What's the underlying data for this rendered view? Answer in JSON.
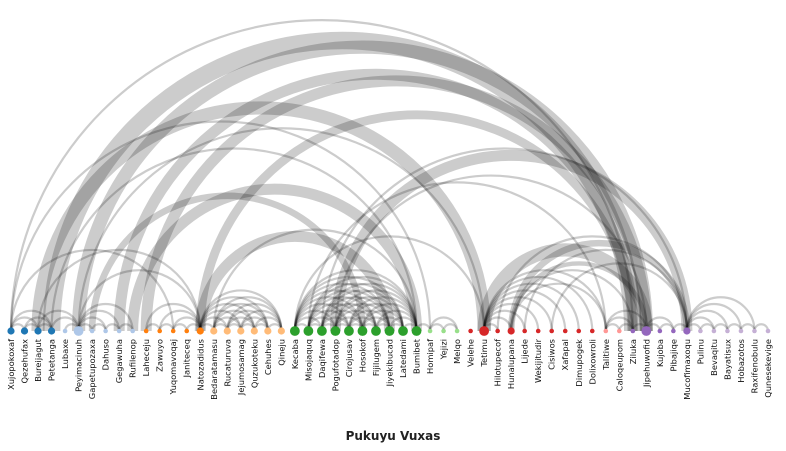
{
  "title": "Pukuyu Vuxas",
  "nodes": [
    {
      "label": "Xujopokoxaf",
      "group": 0,
      "size": 2
    },
    {
      "label": "Qezehufax",
      "group": 0,
      "size": 2
    },
    {
      "label": "Bureijagut",
      "group": 0,
      "size": 2
    },
    {
      "label": "Petetanga",
      "group": 0,
      "size": 2
    },
    {
      "label": "Lubaxe",
      "group": 1,
      "size": 1
    },
    {
      "label": "Peyimacinuh",
      "group": 1,
      "size": 3
    },
    {
      "label": "Gapetupozaxa",
      "group": 1,
      "size": 1
    },
    {
      "label": "Dahuso",
      "group": 1,
      "size": 1
    },
    {
      "label": "Gegawuha",
      "group": 1,
      "size": 1
    },
    {
      "label": "Rufilenop",
      "group": 1,
      "size": 1
    },
    {
      "label": "Laheceju",
      "group": 2,
      "size": 1
    },
    {
      "label": "Zawuyo",
      "group": 2,
      "size": 1
    },
    {
      "label": "Yuqomavoqaj",
      "group": 2,
      "size": 1
    },
    {
      "label": "Janiteceq",
      "group": 2,
      "size": 1
    },
    {
      "label": "Natozadidus",
      "group": 2,
      "size": 2
    },
    {
      "label": "Bedaratamasu",
      "group": 3,
      "size": 2
    },
    {
      "label": "Rucaturuva",
      "group": 3,
      "size": 2
    },
    {
      "label": "Jejumosamag",
      "group": 3,
      "size": 2
    },
    {
      "label": "Quzukoteku",
      "group": 3,
      "size": 2
    },
    {
      "label": "Cehuhes",
      "group": 3,
      "size": 2
    },
    {
      "label": "Qineju",
      "group": 3,
      "size": 2
    },
    {
      "label": "Kecaba",
      "group": 4,
      "size": 3
    },
    {
      "label": "Misojaquq",
      "group": 4,
      "size": 3
    },
    {
      "label": "Daqifewa",
      "group": 4,
      "size": 3
    },
    {
      "label": "Pogufotadop",
      "group": 4,
      "size": 3
    },
    {
      "label": "Cirojusav",
      "group": 4,
      "size": 3
    },
    {
      "label": "Hosokof",
      "group": 4,
      "size": 3
    },
    {
      "label": "Fijilugem",
      "group": 4,
      "size": 3
    },
    {
      "label": "Jiyekibucad",
      "group": 4,
      "size": 3
    },
    {
      "label": "Latedami",
      "group": 4,
      "size": 3
    },
    {
      "label": "Bumibet",
      "group": 4,
      "size": 3
    },
    {
      "label": "Homipaf",
      "group": 5,
      "size": 1
    },
    {
      "label": "Yejizi",
      "group": 5,
      "size": 1
    },
    {
      "label": "Melqo",
      "group": 5,
      "size": 1
    },
    {
      "label": "Velehe",
      "group": 6,
      "size": 1
    },
    {
      "label": "Tetimu",
      "group": 6,
      "size": 3
    },
    {
      "label": "Hilotupecof",
      "group": 6,
      "size": 1
    },
    {
      "label": "Hunalupana",
      "group": 6,
      "size": 2
    },
    {
      "label": "Lijede",
      "group": 6,
      "size": 1
    },
    {
      "label": "Wekijitudir",
      "group": 6,
      "size": 1
    },
    {
      "label": "Cisiwos",
      "group": 6,
      "size": 1
    },
    {
      "label": "Xafapal",
      "group": 6,
      "size": 1
    },
    {
      "label": "Dimupogek",
      "group": 6,
      "size": 1
    },
    {
      "label": "Dolixowroli",
      "group": 6,
      "size": 1
    },
    {
      "label": "Talitiwe",
      "group": 7,
      "size": 1
    },
    {
      "label": "Caloqeupom",
      "group": 7,
      "size": 1
    },
    {
      "label": "Ziluka",
      "group": 8,
      "size": 1
    },
    {
      "label": "Jipehuwofid",
      "group": 8,
      "size": 3
    },
    {
      "label": "Kujoba",
      "group": 8,
      "size": 1
    },
    {
      "label": "Pibajiqe",
      "group": 8,
      "size": 1
    },
    {
      "label": "Mucofimaxoqu",
      "group": 8,
      "size": 2
    },
    {
      "label": "Pulinu",
      "group": 9,
      "size": 1
    },
    {
      "label": "Bevaqitu",
      "group": 9,
      "size": 1
    },
    {
      "label": "Bayatisux",
      "group": 9,
      "size": 1
    },
    {
      "label": "Hobazotos",
      "group": 9,
      "size": 1
    },
    {
      "label": "Raxifenobulu",
      "group": 9,
      "size": 1
    },
    {
      "label": "Qunesekevige",
      "group": 9,
      "size": 1
    }
  ],
  "group_colors": [
    "#1f77b4",
    "#aec7e8",
    "#ff7f0e",
    "#ffbb78",
    "#2ca02c",
    "#98df8a",
    "#d62728",
    "#ff9896",
    "#9467bd",
    "#c5b0d5"
  ],
  "link_color": "#000000",
  "links": [
    [
      0,
      1,
      1
    ],
    [
      0,
      2,
      1
    ],
    [
      0,
      3,
      1
    ],
    [
      1,
      2,
      1
    ],
    [
      1,
      3,
      1
    ],
    [
      2,
      3,
      1
    ],
    [
      2,
      5,
      1
    ],
    [
      3,
      5,
      1
    ],
    [
      4,
      5,
      1
    ],
    [
      5,
      6,
      1
    ],
    [
      5,
      7,
      1
    ],
    [
      5,
      8,
      1
    ],
    [
      5,
      9,
      1
    ],
    [
      6,
      7,
      1
    ],
    [
      7,
      8,
      1
    ],
    [
      8,
      9,
      1
    ],
    [
      2,
      35,
      6
    ],
    [
      3,
      46,
      8
    ],
    [
      5,
      47,
      6
    ],
    [
      8,
      46,
      5
    ],
    [
      9,
      30,
      5
    ],
    [
      6,
      26,
      3
    ],
    [
      10,
      47,
      5
    ],
    [
      14,
      46,
      4
    ],
    [
      0,
      12,
      1
    ],
    [
      0,
      31,
      1
    ],
    [
      0,
      46,
      1
    ],
    [
      2,
      14,
      1
    ],
    [
      5,
      14,
      1
    ],
    [
      5,
      35,
      1
    ],
    [
      3,
      30,
      1
    ],
    [
      10,
      11,
      1
    ],
    [
      11,
      12,
      1
    ],
    [
      12,
      13,
      1
    ],
    [
      13,
      14,
      1
    ],
    [
      10,
      14,
      1
    ],
    [
      11,
      14,
      1
    ],
    [
      12,
      14,
      1
    ],
    [
      14,
      15,
      1
    ],
    [
      14,
      16,
      1
    ],
    [
      14,
      17,
      1
    ],
    [
      14,
      18,
      1
    ],
    [
      14,
      19,
      1
    ],
    [
      14,
      20,
      1
    ],
    [
      15,
      16,
      1
    ],
    [
      15,
      17,
      1
    ],
    [
      15,
      18,
      1
    ],
    [
      15,
      19,
      1
    ],
    [
      15,
      20,
      1
    ],
    [
      16,
      17,
      1
    ],
    [
      16,
      18,
      1
    ],
    [
      16,
      19,
      1
    ],
    [
      16,
      20,
      1
    ],
    [
      17,
      18,
      1
    ],
    [
      17,
      19,
      1
    ],
    [
      17,
      20,
      1
    ],
    [
      18,
      19,
      1
    ],
    [
      18,
      20,
      1
    ],
    [
      19,
      20,
      1
    ],
    [
      14,
      28,
      5
    ],
    [
      15,
      30,
      1
    ],
    [
      21,
      30,
      1
    ],
    [
      22,
      29,
      1
    ],
    [
      23,
      28,
      1
    ],
    [
      24,
      27,
      1
    ],
    [
      25,
      26,
      1
    ],
    [
      21,
      22,
      1
    ],
    [
      21,
      23,
      1
    ],
    [
      21,
      24,
      1
    ],
    [
      21,
      25,
      1
    ],
    [
      21,
      26,
      1
    ],
    [
      21,
      27,
      1
    ],
    [
      21,
      28,
      1
    ],
    [
      21,
      29,
      1
    ],
    [
      22,
      23,
      1
    ],
    [
      22,
      24,
      1
    ],
    [
      22,
      25,
      1
    ],
    [
      22,
      26,
      1
    ],
    [
      22,
      27,
      1
    ],
    [
      22,
      28,
      1
    ],
    [
      22,
      30,
      1
    ],
    [
      23,
      24,
      1
    ],
    [
      23,
      25,
      1
    ],
    [
      23,
      26,
      1
    ],
    [
      23,
      27,
      1
    ],
    [
      23,
      29,
      1
    ],
    [
      23,
      30,
      1
    ],
    [
      24,
      25,
      1
    ],
    [
      24,
      26,
      1
    ],
    [
      24,
      28,
      1
    ],
    [
      24,
      29,
      1
    ],
    [
      24,
      30,
      1
    ],
    [
      25,
      27,
      1
    ],
    [
      25,
      28,
      1
    ],
    [
      25,
      29,
      1
    ],
    [
      25,
      30,
      1
    ],
    [
      26,
      27,
      1
    ],
    [
      26,
      28,
      1
    ],
    [
      26,
      29,
      1
    ],
    [
      26,
      30,
      1
    ],
    [
      27,
      28,
      1
    ],
    [
      27,
      29,
      1
    ],
    [
      27,
      30,
      1
    ],
    [
      28,
      29,
      1
    ],
    [
      28,
      30,
      1
    ],
    [
      29,
      30,
      1
    ],
    [
      21,
      35,
      1
    ],
    [
      24,
      47,
      1
    ],
    [
      22,
      44,
      1
    ],
    [
      23,
      50,
      1
    ],
    [
      24,
      50,
      5
    ],
    [
      35,
      47,
      6
    ],
    [
      30,
      31,
      1
    ],
    [
      31,
      32,
      1
    ],
    [
      32,
      33,
      1
    ],
    [
      31,
      33,
      1
    ],
    [
      35,
      36,
      1
    ],
    [
      35,
      37,
      1
    ],
    [
      35,
      38,
      1
    ],
    [
      35,
      39,
      1
    ],
    [
      35,
      40,
      1
    ],
    [
      35,
      41,
      1
    ],
    [
      35,
      42,
      1
    ],
    [
      35,
      43,
      1
    ],
    [
      35,
      44,
      1
    ],
    [
      37,
      50,
      3
    ],
    [
      37,
      47,
      2
    ],
    [
      37,
      44,
      1
    ],
    [
      37,
      46,
      1
    ],
    [
      40,
      50,
      1
    ],
    [
      36,
      50,
      1
    ],
    [
      38,
      50,
      1
    ],
    [
      44,
      45,
      1
    ],
    [
      44,
      46,
      1
    ],
    [
      45,
      46,
      1
    ],
    [
      46,
      47,
      1
    ],
    [
      47,
      48,
      1
    ],
    [
      47,
      49,
      1
    ],
    [
      48,
      49,
      1
    ],
    [
      44,
      47,
      1
    ],
    [
      50,
      51,
      1
    ],
    [
      50,
      52,
      1
    ],
    [
      50,
      53,
      1
    ],
    [
      50,
      54,
      1
    ],
    [
      50,
      55,
      1
    ],
    [
      51,
      52,
      1
    ],
    [
      52,
      53,
      1
    ],
    [
      53,
      54,
      1
    ],
    [
      54,
      55,
      1
    ],
    [
      55,
      56,
      1
    ],
    [
      49,
      50,
      1
    ]
  ]
}
